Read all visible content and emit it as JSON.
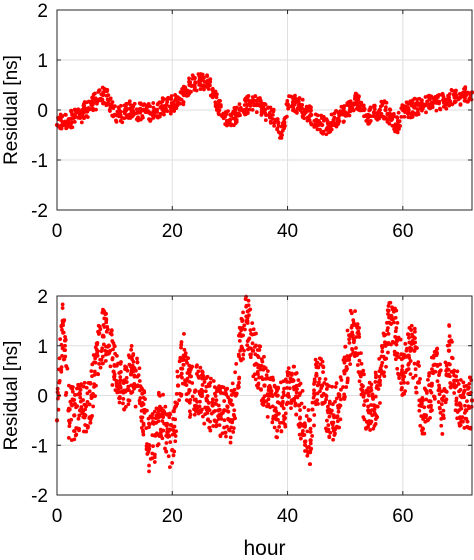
{
  "chart_data": [
    {
      "type": "scatter",
      "title": "",
      "xlabel": "",
      "ylabel": "Residual [ns]",
      "xlim": [
        0,
        72
      ],
      "ylim": [
        -2,
        2
      ],
      "xticks": [
        0,
        20,
        40,
        60
      ],
      "yticks": [
        -2,
        -1,
        0,
        1,
        2
      ],
      "grid": true,
      "marker_color": "#ff0000",
      "series": [
        {
          "x": [
            0,
            1,
            2,
            3,
            4,
            5,
            6,
            7,
            8,
            9,
            10,
            11,
            12,
            13,
            14,
            15,
            16,
            17,
            18,
            19,
            20,
            21,
            22,
            23,
            24,
            25,
            26,
            27,
            28,
            29,
            30,
            31,
            32,
            33,
            34,
            35,
            36,
            37,
            38,
            39,
            40,
            41,
            42,
            43,
            44,
            45,
            46,
            47,
            48,
            49,
            50,
            51,
            52,
            53,
            54,
            55,
            56,
            57,
            58,
            59,
            60,
            61,
            62,
            63,
            64,
            65,
            66,
            67,
            68,
            69,
            70,
            71,
            72
          ],
          "y": [
            -0.3,
            -0.25,
            -0.2,
            -0.15,
            -0.1,
            0.0,
            0.1,
            0.2,
            0.3,
            0.2,
            -0.1,
            -0.1,
            0.0,
            0.0,
            -0.05,
            0.0,
            -0.05,
            0.0,
            0.05,
            0.1,
            0.1,
            0.15,
            0.3,
            0.5,
            0.55,
            0.6,
            0.55,
            0.4,
            0.1,
            -0.1,
            -0.2,
            -0.1,
            0.0,
            0.1,
            0.15,
            0.1,
            0.0,
            -0.1,
            -0.2,
            -0.5,
            0.1,
            0.15,
            0.1,
            0.0,
            -0.1,
            -0.2,
            -0.3,
            -0.35,
            -0.2,
            -0.1,
            -0.05,
            0.1,
            0.2,
            0.0,
            -0.1,
            -0.05,
            0.0,
            0.0,
            -0.2,
            -0.3,
            0.0,
            0.0,
            0.05,
            0.1,
            0.1,
            0.15,
            0.15,
            0.2,
            0.2,
            0.25,
            0.25,
            0.3,
            0.35
          ]
        }
      ]
    },
    {
      "type": "scatter",
      "title": "",
      "xlabel": "hour",
      "ylabel": "Residual [ns]",
      "xlim": [
        0,
        72
      ],
      "ylim": [
        -2,
        2
      ],
      "xticks": [
        0,
        20,
        40,
        60
      ],
      "yticks": [
        -2,
        -1,
        0,
        1,
        2
      ],
      "grid": true,
      "marker_color": "#ff0000",
      "series": [
        {
          "x": [
            0,
            1,
            2,
            3,
            4,
            5,
            6,
            7,
            8,
            9,
            10,
            11,
            12,
            13,
            14,
            15,
            16,
            17,
            18,
            19,
            20,
            21,
            22,
            23,
            24,
            25,
            26,
            27,
            28,
            29,
            30,
            31,
            32,
            33,
            34,
            35,
            36,
            37,
            38,
            39,
            40,
            41,
            42,
            43,
            44,
            45,
            46,
            47,
            48,
            49,
            50,
            51,
            52,
            53,
            54,
            55,
            56,
            57,
            58,
            59,
            60,
            61,
            62,
            63,
            64,
            65,
            66,
            67,
            68,
            69,
            70,
            71,
            72
          ],
          "y": [
            -0.5,
            1.5,
            -0.3,
            -0.4,
            -0.3,
            -0.2,
            0.0,
            0.8,
            1.2,
            1.0,
            0.6,
            0.3,
            0.1,
            0.5,
            0.2,
            -0.3,
            -1.0,
            -0.8,
            -0.3,
            -0.6,
            -1.1,
            0.2,
            0.8,
            0.1,
            0.1,
            0.0,
            -0.1,
            -0.2,
            -0.3,
            -0.3,
            -0.5,
            0.0,
            1.2,
            1.5,
            0.9,
            0.6,
            0.2,
            0.0,
            -0.4,
            -0.2,
            0.0,
            0.3,
            -0.2,
            -0.6,
            -0.9,
            0.4,
            0.2,
            -0.3,
            -0.4,
            -0.2,
            0.5,
            1.2,
            1.4,
            0.1,
            -0.3,
            -0.2,
            0.3,
            1.0,
            1.6,
            1.1,
            0.4,
            0.8,
            0.9,
            -0.1,
            -0.4,
            0.2,
            0.6,
            -0.4,
            0.9,
            0.2,
            -0.2,
            -0.3,
            -0.1
          ]
        }
      ]
    }
  ]
}
